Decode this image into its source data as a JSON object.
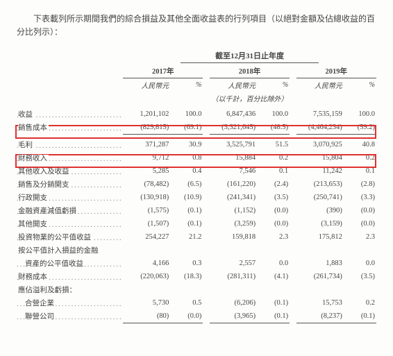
{
  "intro": "下表載列所示期間我們的綜合損益及其他全面收益表的行列項目（以絕對金額及佔總收益的百分比列示）：",
  "header": {
    "period": "截至12月31日止年度",
    "years": [
      "2017年",
      "2018年",
      "2019年"
    ],
    "sub_amt": "人民幣元",
    "sub_pct": "%",
    "unit_note": "（以千計，百分比除外）"
  },
  "rows": [
    {
      "label": "收益",
      "a1": "1,201,102",
      "p1": "100.0",
      "a2": "6,847,436",
      "p2": "100.0",
      "a3": "7,535,159",
      "p3": "100.0"
    },
    {
      "label": "銷售成本",
      "a1": "(829,815)",
      "p1": "(69.1)",
      "a2": "(3,321,645)",
      "p2": "(48.5)",
      "a3": "(4,464,234)",
      "p3": "(59.2)",
      "ul": true
    },
    {
      "spacer": true
    },
    {
      "label": "毛利",
      "a1": "371,287",
      "p1": "30.9",
      "a2": "3,525,791",
      "p2": "51.5",
      "a3": "3,070,925",
      "p3": "40.8"
    },
    {
      "label": "財務收入",
      "a1": "9,712",
      "p1": "0.8",
      "a2": "15,884",
      "p2": "0.2",
      "a3": "15,804",
      "p3": "0.2"
    },
    {
      "label": "其他收入及收益",
      "a1": "5,285",
      "p1": "0.4",
      "a2": "7,546",
      "p2": "0.1",
      "a3": "11,242",
      "p3": "0.1"
    },
    {
      "label": "銷售及分銷開支",
      "a1": "(78,482)",
      "p1": "(6.5)",
      "a2": "(161,220)",
      "p2": "(2.4)",
      "a3": "(213,653)",
      "p3": "(2.8)"
    },
    {
      "label": "行政開支",
      "a1": "(130,918)",
      "p1": "(10.9)",
      "a2": "(241,341)",
      "p2": "(3.5)",
      "a3": "(250,741)",
      "p3": "(3.3)"
    },
    {
      "label": "金融資產減值虧損",
      "a1": "(1,575)",
      "p1": "(0.1)",
      "a2": "(1,152)",
      "p2": "(0.0)",
      "a3": "(390)",
      "p3": "(0.0)"
    },
    {
      "label": "其他開支",
      "a1": "(1,507)",
      "p1": "(0.1)",
      "a2": "(3,259)",
      "p2": "(0.0)",
      "a3": "(3,159)",
      "p3": "(0.0)"
    },
    {
      "label": "投資物業的公平值收益",
      "a1": "254,227",
      "p1": "21.2",
      "a2": "159,818",
      "p2": "2.3",
      "a3": "175,812",
      "p3": "2.3"
    },
    {
      "label": "按公平值計入損益的金融",
      "nodots": true
    },
    {
      "label": " 資產的公平值收益",
      "a1": "4,166",
      "p1": "0.3",
      "a2": "2,557",
      "p2": "0.0",
      "a3": "1,883",
      "p3": "0.0",
      "indent": true
    },
    {
      "label": "財務成本",
      "a1": "(220,063)",
      "p1": "(18.3)",
      "a2": "(281,311)",
      "p2": "(4.1)",
      "a3": "(261,734)",
      "p3": "(3.5)"
    },
    {
      "label": "應佔溢利及虧損：",
      "nodots": true
    },
    {
      "label": " 合營企業",
      "a1": "5,730",
      "p1": "0.5",
      "a2": "(6,206)",
      "p2": "(0.1)",
      "a3": "15,753",
      "p3": "0.2",
      "indent": true
    },
    {
      "label": " 聯營公司",
      "a1": "(80)",
      "p1": "(0.0)",
      "a2": "(3,965)",
      "p2": "(0.1)",
      "a3": "(8,237)",
      "p3": "(0.1)",
      "indent": true,
      "ul": true
    }
  ],
  "highlights": {
    "color": "#e03030",
    "hl1_row": "收益",
    "hl2_row": "毛利"
  }
}
